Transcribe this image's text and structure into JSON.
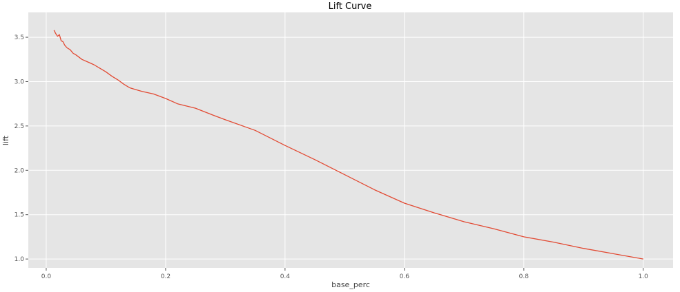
{
  "chart_data": {
    "type": "line",
    "title": "Lift Curve",
    "xlabel": "base_perc",
    "ylabel": "lift",
    "xlim": [
      -0.03,
      1.05
    ],
    "ylim": [
      0.9,
      3.78
    ],
    "xticks": [
      0.0,
      0.2,
      0.4,
      0.6,
      0.8,
      1.0
    ],
    "xtick_labels": [
      "0.0",
      "0.2",
      "0.4",
      "0.6",
      "0.8",
      "1.0"
    ],
    "yticks": [
      1.0,
      1.5,
      2.0,
      2.5,
      3.0,
      3.5
    ],
    "ytick_labels": [
      "1.0",
      "1.5",
      "2.0",
      "2.5",
      "3.0",
      "3.5"
    ],
    "grid": true,
    "background": "#e5e5e5",
    "line_color": "#e24a33",
    "series": [
      {
        "x": [
          0.013,
          0.016,
          0.019,
          0.022,
          0.025,
          0.028,
          0.031,
          0.035,
          0.04,
          0.045,
          0.05,
          0.06,
          0.07,
          0.08,
          0.09,
          0.1,
          0.11,
          0.12,
          0.13,
          0.14,
          0.15,
          0.16,
          0.18,
          0.2,
          0.22,
          0.25,
          0.28,
          0.3,
          0.35,
          0.4,
          0.45,
          0.5,
          0.55,
          0.6,
          0.65,
          0.7,
          0.75,
          0.8,
          0.85,
          0.9,
          0.95,
          1.0
        ],
        "y": [
          3.58,
          3.54,
          3.51,
          3.53,
          3.46,
          3.45,
          3.41,
          3.38,
          3.36,
          3.32,
          3.3,
          3.25,
          3.22,
          3.19,
          3.15,
          3.11,
          3.06,
          3.02,
          2.97,
          2.93,
          2.91,
          2.89,
          2.86,
          2.81,
          2.75,
          2.7,
          2.62,
          2.57,
          2.45,
          2.28,
          2.12,
          1.95,
          1.78,
          1.63,
          1.52,
          1.42,
          1.34,
          1.25,
          1.19,
          1.12,
          1.06,
          1.0
        ]
      }
    ]
  }
}
